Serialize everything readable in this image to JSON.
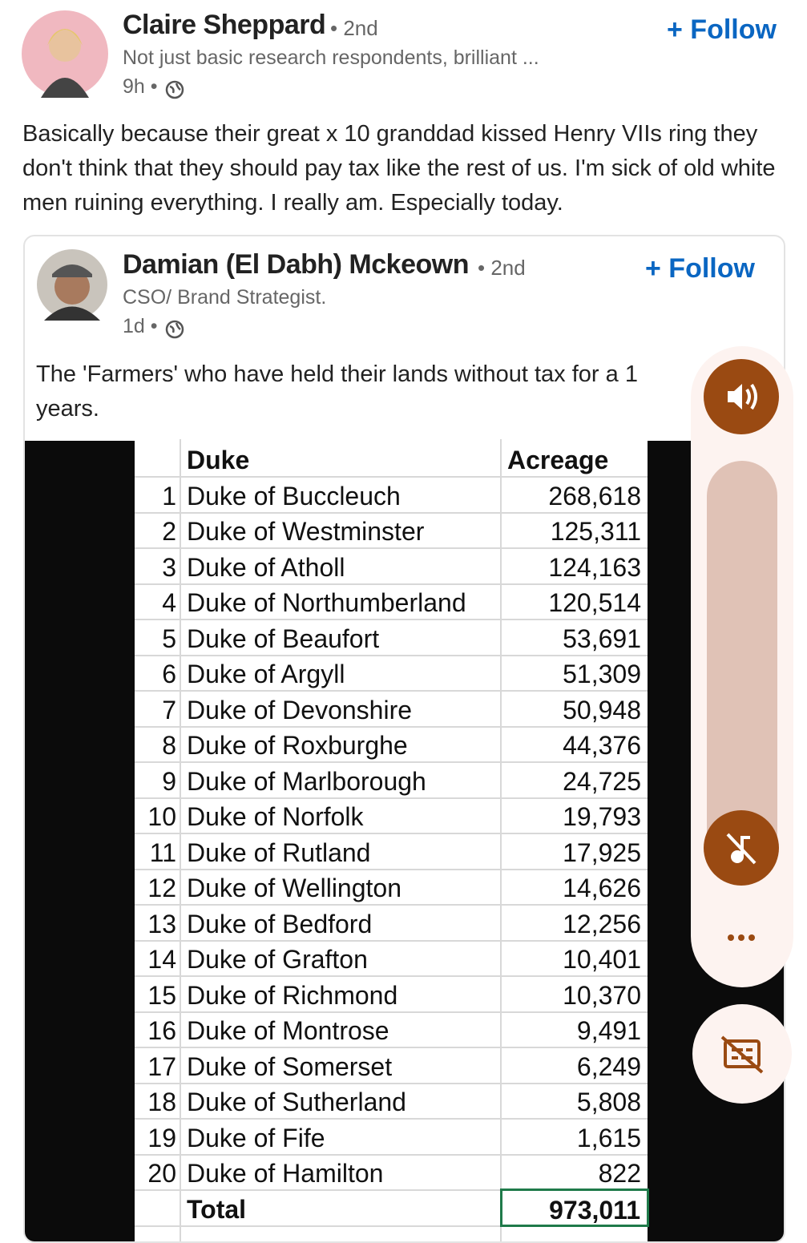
{
  "post": {
    "author": "Claire Sheppard",
    "degree": "• 2nd",
    "headline": "Not just basic research respondents, brilliant ...",
    "time": "9h •",
    "follow": "+ Follow",
    "text": "Basically because their great x 10 granddad kissed Henry VIIs ring they don't think that they should pay tax like the rest of us. I'm sick of old white men ruining everything. I really am. Especially today."
  },
  "shared_post": {
    "author": "Damian (El Dabh) Mckeown",
    "degree": "• 2nd",
    "headline": "CSO/ Brand Strategist.",
    "time": "1d •",
    "follow": "+ Follow",
    "text_lines": [
      "The 'Farmers' who have held their lands without tax for a 1",
      "years."
    ]
  },
  "table": {
    "header": [
      "Duke",
      "Acreage"
    ],
    "rows": [
      [
        "1",
        "Duke of Buccleuch",
        "268,618"
      ],
      [
        "2",
        "Duke of Westminster",
        "125,311"
      ],
      [
        "3",
        "Duke of Atholl",
        "124,163"
      ],
      [
        "4",
        "Duke of Northumberland",
        "120,514"
      ],
      [
        "5",
        "Duke of Beaufort",
        "53,691"
      ],
      [
        "6",
        "Duke of Argyll",
        "51,309"
      ],
      [
        "7",
        "Duke of Devonshire",
        "50,948"
      ],
      [
        "8",
        "Duke of Roxburghe",
        "44,376"
      ],
      [
        "9",
        "Duke of Marlborough",
        "24,725"
      ],
      [
        "10",
        "Duke of Norfolk",
        "19,793"
      ],
      [
        "11",
        "Duke of Rutland",
        "17,925"
      ],
      [
        "12",
        "Duke of Wellington",
        "14,626"
      ],
      [
        "13",
        "Duke of Bedford",
        "12,256"
      ],
      [
        "14",
        "Duke of Grafton",
        "10,401"
      ],
      [
        "15",
        "Duke of Richmond",
        "10,370"
      ],
      [
        "16",
        "Duke of Montrose",
        "9,491"
      ],
      [
        "17",
        "Duke of Somerset",
        "6,249"
      ],
      [
        "18",
        "Duke of Sutherland",
        "5,808"
      ],
      [
        "19",
        "Duke of Fife",
        "1,615"
      ],
      [
        "20",
        "Duke of Hamilton",
        "822"
      ]
    ],
    "total": [
      "Total",
      "973,011"
    ]
  }
}
